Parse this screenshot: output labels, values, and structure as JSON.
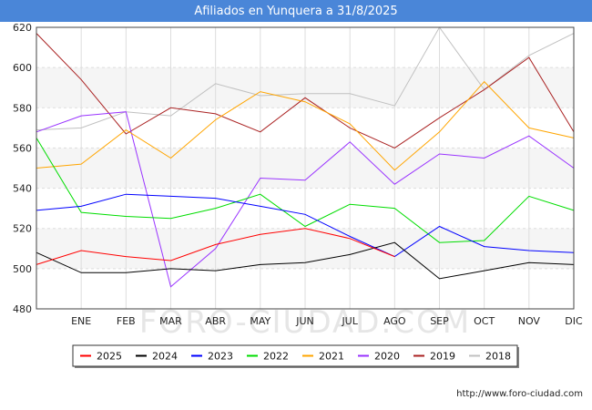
{
  "header": {
    "title": "Afiliados en Yunquera a 31/8/2025"
  },
  "footer": {
    "url": "http://www.foro-ciudad.com"
  },
  "watermark": "FORO-CIUDAD.COM",
  "chart_data": {
    "type": "line",
    "title": "Afiliados en Yunquera a 31/8/2025",
    "xlabel": "",
    "ylabel": "",
    "categories": [
      "",
      "ENE",
      "FEB",
      "MAR",
      "ABR",
      "MAY",
      "JUN",
      "JUL",
      "AGO",
      "SEP",
      "OCT",
      "NOV",
      "DIC"
    ],
    "ylim": [
      480,
      620
    ],
    "yticks": [
      480,
      500,
      520,
      540,
      560,
      580,
      600,
      620
    ],
    "grid": true,
    "legend_position": "bottom",
    "series": [
      {
        "name": "2025",
        "color": "#ff0000",
        "values": [
          502,
          509,
          506,
          504,
          512,
          517,
          520,
          515,
          506,
          null,
          null,
          null,
          null
        ]
      },
      {
        "name": "2024",
        "color": "#000000",
        "values": [
          508,
          498,
          498,
          500,
          499,
          502,
          503,
          507,
          513,
          495,
          499,
          503,
          502
        ]
      },
      {
        "name": "2023",
        "color": "#0000ff",
        "values": [
          529,
          531,
          537,
          536,
          535,
          531,
          527,
          516,
          506,
          521,
          511,
          509,
          508
        ]
      },
      {
        "name": "2022",
        "color": "#00dd00",
        "values": [
          565,
          528,
          526,
          525,
          530,
          537,
          521,
          532,
          530,
          513,
          514,
          536,
          529
        ]
      },
      {
        "name": "2021",
        "color": "#ffa500",
        "values": [
          550,
          552,
          569,
          555,
          574,
          588,
          583,
          572,
          549,
          568,
          593,
          570,
          565
        ]
      },
      {
        "name": "2020",
        "color": "#9933ff",
        "values": [
          568,
          576,
          578,
          491,
          510,
          545,
          544,
          563,
          542,
          557,
          555,
          566,
          550
        ]
      },
      {
        "name": "2019",
        "color": "#aa2222",
        "values": [
          617,
          594,
          567,
          580,
          577,
          568,
          585,
          570,
          560,
          575,
          589,
          605,
          568
        ]
      },
      {
        "name": "2018",
        "color": "#c0c0c0",
        "values": [
          569,
          570,
          578,
          576,
          592,
          586,
          587,
          587,
          581,
          620,
          589,
          606,
          617
        ]
      }
    ]
  }
}
